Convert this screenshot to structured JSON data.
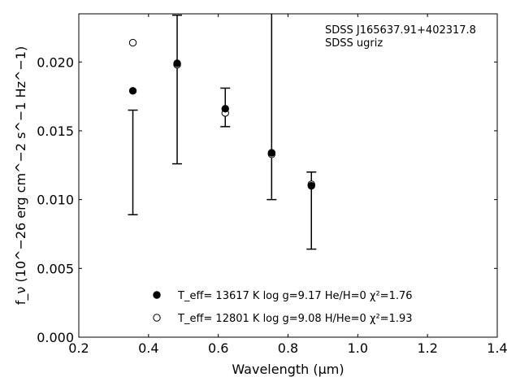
{
  "chart_data": {
    "type": "scatter",
    "annotation": [
      "SDSS J165637.91+402317.8",
      "SDSS ugriz"
    ],
    "xlabel": "Wavelength (μm)",
    "ylabel": "f_ν (10^−26 erg cm^−2 s^−1 Hz^−1)",
    "xlim": [
      0.2,
      1.4
    ],
    "ylim": [
      0.0,
      0.0235
    ],
    "xticks": [
      "0.2",
      "0.4",
      "0.6",
      "0.8",
      "1.0",
      "1.2",
      "1.4"
    ],
    "yticks": [
      "0.000",
      "0.005",
      "0.010",
      "0.015",
      "0.020"
    ],
    "grid": false,
    "legend_position": "bottom-center",
    "observed": {
      "x": [
        0.355,
        0.482,
        0.62,
        0.753,
        0.867
      ],
      "y": [
        0.0127,
        0.018,
        0.0167,
        0.0185,
        0.0092
      ],
      "yerr": [
        0.0038,
        0.0054,
        0.0014,
        0.0085,
        0.0028
      ]
    },
    "series": [
      {
        "name": "T_eff= 13617 K  log g=9.17  He/H=0  χ²=1.76",
        "marker": "filled-circle",
        "x": [
          0.355,
          0.482,
          0.62,
          0.753,
          0.867
        ],
        "y": [
          0.0179,
          0.0199,
          0.0166,
          0.0134,
          0.011
        ]
      },
      {
        "name": "T_eff= 12801 K  log g=9.08  H/He=0  χ²=1.93",
        "marker": "open-circle",
        "x": [
          0.355,
          0.482,
          0.62,
          0.753,
          0.867
        ],
        "y": [
          0.0214,
          0.0198,
          0.0163,
          0.0133,
          0.0111
        ]
      }
    ]
  }
}
